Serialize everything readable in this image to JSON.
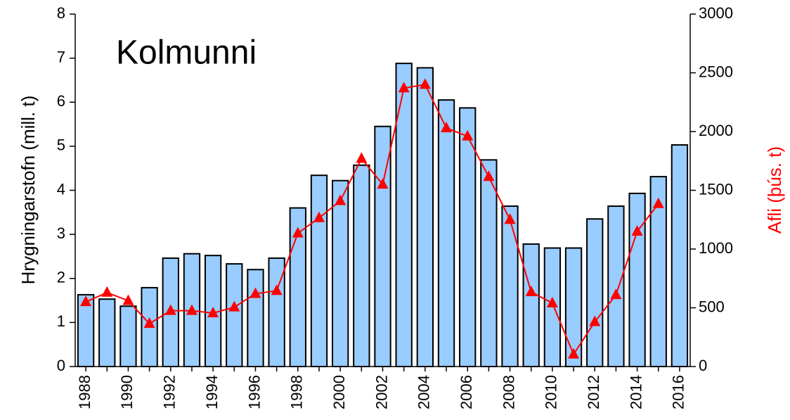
{
  "chart_data": {
    "type": "bar_line",
    "title": "Kolmunni",
    "y_label": "Hrygningarstofn (mill. t)",
    "y2_label": "Afli (þús. t)",
    "categories": [
      "1988",
      null,
      "1990",
      null,
      "1992",
      null,
      "1994",
      null,
      "1996",
      null,
      "1998",
      null,
      "2000",
      null,
      "2002",
      null,
      "2004",
      null,
      "2006",
      null,
      "2008",
      null,
      "2010",
      null,
      "2012",
      null,
      "2014",
      null,
      "2016"
    ],
    "series": [
      {
        "type": "bar",
        "color": "#99ccff",
        "values": [
          1.63,
          1.53,
          1.37,
          1.79,
          2.46,
          2.56,
          2.52,
          2.33,
          2.2,
          2.46,
          3.6,
          4.34,
          4.22,
          4.57,
          5.45,
          6.88,
          6.78,
          6.05,
          5.87,
          4.69,
          3.64,
          2.78,
          2.69,
          2.69,
          3.35,
          3.64,
          3.93,
          4.31,
          5.03
        ]
      },
      {
        "type": "line",
        "color": "#ff0000",
        "axis": "y2",
        "values": [
          550,
          630,
          560,
          365,
          475,
          475,
          455,
          505,
          620,
          645,
          1135,
          1265,
          1410,
          1770,
          1550,
          2370,
          2400,
          2030,
          1960,
          1615,
          1250,
          635,
          540,
          104,
          380,
          610,
          1150,
          1385,
          null
        ]
      }
    ],
    "ylim": [
      0,
      8
    ],
    "yticks": [
      0,
      1,
      2,
      3,
      4,
      5,
      6,
      7,
      8
    ],
    "y2lim": [
      0,
      3000
    ],
    "y2ticks": [
      0,
      500,
      1000,
      1500,
      2000,
      2500,
      3000
    ],
    "grid": false
  }
}
